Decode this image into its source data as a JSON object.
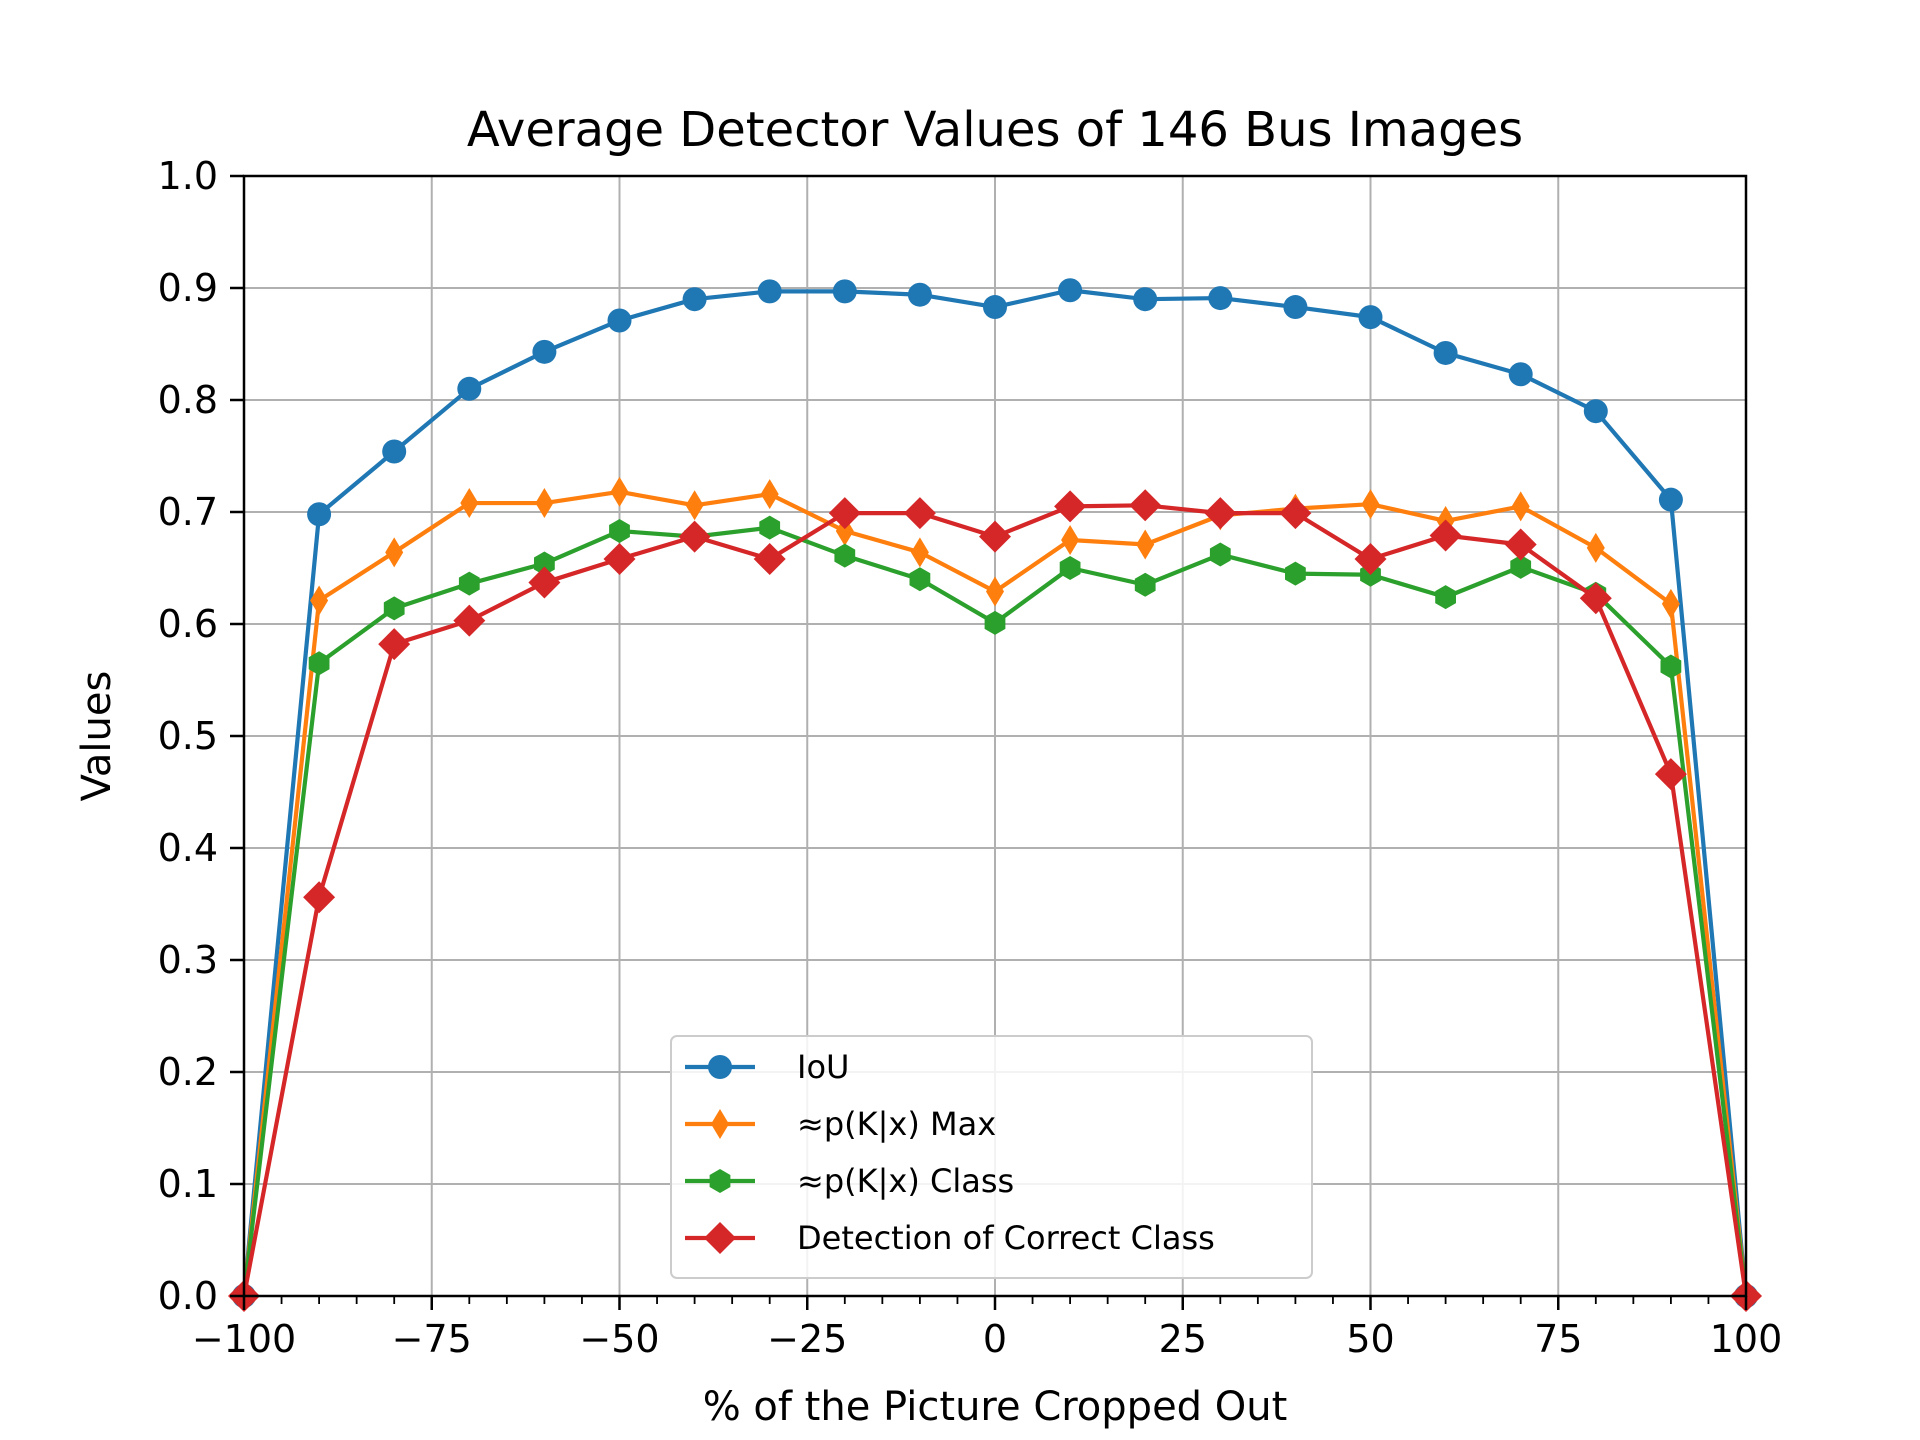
{
  "chart_data": {
    "type": "line",
    "title": "Average Detector Values of 146 Bus Images",
    "xlabel": "% of the Picture Cropped Out",
    "ylabel": "Values",
    "xlim": [
      -100,
      100
    ],
    "ylim": [
      0,
      1.0
    ],
    "xticks": [
      -100,
      -75,
      -50,
      -25,
      0,
      25,
      50,
      75,
      100
    ],
    "xtick_labels": [
      "−100",
      "−75",
      "−50",
      "−25",
      "0",
      "25",
      "50",
      "75",
      "100"
    ],
    "yticks": [
      0,
      0.1,
      0.2,
      0.3,
      0.4,
      0.5,
      0.6,
      0.7,
      0.8,
      0.9,
      1.0
    ],
    "ytick_labels": [
      "0.0",
      "0.1",
      "0.2",
      "0.3",
      "0.4",
      "0.5",
      "0.6",
      "0.7",
      "0.8",
      "0.9",
      "1.0"
    ],
    "grid": true,
    "legend_position": "lower-center",
    "x": [
      -100,
      -90,
      -80,
      -70,
      -60,
      -50,
      -40,
      -30,
      -20,
      -10,
      0,
      10,
      20,
      30,
      40,
      50,
      60,
      70,
      80,
      90,
      100
    ],
    "series": [
      {
        "name": "IoU",
        "color": "#1f77b4",
        "marker": "circle",
        "values": [
          0.0,
          0.698,
          0.754,
          0.81,
          0.843,
          0.871,
          0.89,
          0.897,
          0.897,
          0.894,
          0.883,
          0.898,
          0.89,
          0.891,
          0.883,
          0.874,
          0.842,
          0.823,
          0.79,
          0.711,
          0.0
        ]
      },
      {
        "name": "≈p(K|x) Max",
        "color": "#ff7f0e",
        "marker": "thin-diamond",
        "values": [
          0.0,
          0.621,
          0.664,
          0.708,
          0.708,
          0.718,
          0.706,
          0.716,
          0.683,
          0.664,
          0.629,
          0.675,
          0.671,
          0.697,
          0.703,
          0.707,
          0.692,
          0.705,
          0.668,
          0.618,
          0.0
        ]
      },
      {
        "name": "≈p(K|x) Class",
        "color": "#2ca02c",
        "marker": "hexagon",
        "values": [
          0.0,
          0.565,
          0.614,
          0.636,
          0.654,
          0.683,
          0.678,
          0.686,
          0.661,
          0.64,
          0.601,
          0.65,
          0.635,
          0.662,
          0.645,
          0.644,
          0.624,
          0.651,
          0.627,
          0.562,
          0.0
        ]
      },
      {
        "name": "Detection of Correct Class",
        "color": "#d62728",
        "marker": "diamond",
        "values": [
          0.0,
          0.356,
          0.582,
          0.603,
          0.637,
          0.658,
          0.678,
          0.658,
          0.699,
          0.699,
          0.678,
          0.705,
          0.706,
          0.699,
          0.699,
          0.658,
          0.679,
          0.671,
          0.623,
          0.466,
          0.0
        ]
      }
    ]
  }
}
